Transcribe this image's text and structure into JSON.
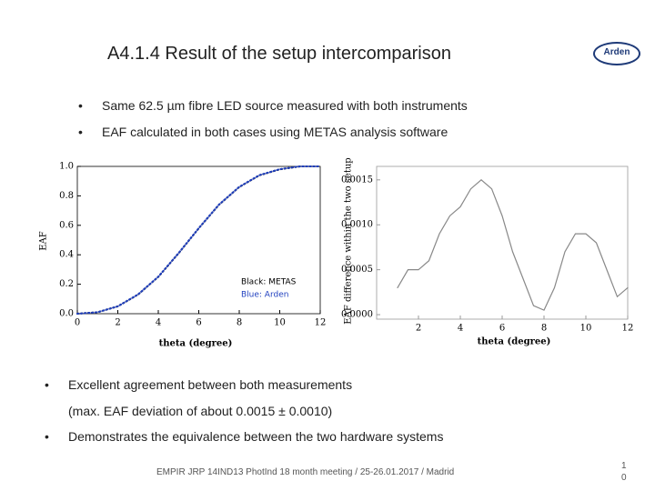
{
  "header": {
    "title": "A4.1.4 Result of the setup intercomparison",
    "logo": "Arden"
  },
  "intro_bullets": [
    "Same 62.5 µm fibre LED source measured with both instruments",
    "EAF calculated in both cases using METAS analysis software"
  ],
  "chart_data": [
    {
      "type": "line",
      "x_label": "theta (degree)",
      "y_label": "EAF",
      "x": [
        0,
        1,
        2,
        3,
        4,
        5,
        6,
        7,
        8,
        9,
        10,
        11,
        12
      ],
      "series": [
        {
          "name": "Black: METAS",
          "color": "#000000",
          "values": [
            0,
            0.01,
            0.05,
            0.13,
            0.25,
            0.41,
            0.58,
            0.74,
            0.86,
            0.94,
            0.98,
            1.0,
            1.0
          ]
        },
        {
          "name": "Blue: Arden",
          "color": "#1f3fbf",
          "values": [
            0,
            0.01,
            0.05,
            0.131,
            0.251,
            0.411,
            0.581,
            0.741,
            0.861,
            0.941,
            0.981,
            1.0,
            1.0
          ]
        }
      ],
      "xlim": [
        0,
        12
      ],
      "ylim": [
        0,
        1
      ],
      "xticks": [
        0,
        2,
        4,
        6,
        8,
        10,
        12
      ],
      "yticks": [
        {
          "value": 0,
          "label": "0.0"
        },
        {
          "value": 0.2,
          "label": "0.2"
        },
        {
          "value": 0.4,
          "label": "0.4"
        },
        {
          "value": 0.6,
          "label": "0.6"
        },
        {
          "value": 0.8,
          "label": "0.8"
        },
        {
          "value": 1,
          "label": "1.0"
        }
      ]
    },
    {
      "type": "line",
      "x_label": "theta (degree)",
      "y_label": "EAF difference within the two setup",
      "x": [
        1,
        1.5,
        2,
        2.5,
        3,
        3.5,
        4,
        4.5,
        5,
        5.5,
        6,
        6.5,
        7,
        7.5,
        8,
        8.5,
        9,
        9.5,
        10,
        10.5,
        11,
        11.5,
        12
      ],
      "series": [
        {
          "name": null,
          "color": "#888888",
          "values": [
            0.0003,
            0.0005,
            0.0005,
            0.0006,
            0.0009,
            0.0011,
            0.0012,
            0.0014,
            0.0015,
            0.0014,
            0.0011,
            0.0007,
            0.0004,
            0.0001,
            5e-05,
            0.0003,
            0.0007,
            0.0009,
            0.0009,
            0.0008,
            0.0005,
            0.0002,
            0.0003
          ]
        }
      ],
      "xlim": [
        0,
        12
      ],
      "ylim": [
        -5e-05,
        0.00165
      ],
      "xticks": [
        2,
        4,
        6,
        8,
        10,
        12
      ],
      "yticks": [
        {
          "value": 0,
          "label": "0.0000"
        },
        {
          "value": 0.0005,
          "label": "0.0005"
        },
        {
          "value": 0.001,
          "label": "0.0010"
        },
        {
          "value": 0.0015,
          "label": "0.0015"
        }
      ]
    }
  ],
  "conclusion_bullets": [
    "Excellent agreement between both measurements",
    "(max. EAF deviation of about 0.0015 ± 0.0010)",
    "Demonstrates the equivalence between the two hardware systems"
  ],
  "footer": {
    "text": "EMPIR JRP 14IND13 PhotInd 18 month meeting / 25-26.01.2017 / Madrid",
    "page": "10"
  }
}
